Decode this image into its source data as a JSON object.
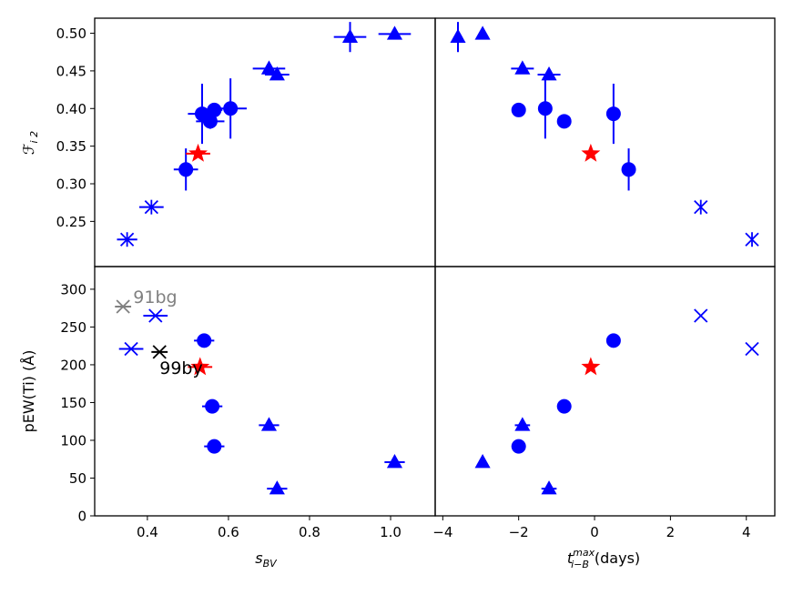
{
  "chart_data": {
    "type": "scatter",
    "colors": {
      "blue": "#0000ff",
      "red": "#ff0000",
      "gray": "#808080",
      "black": "#000000",
      "frame": "#000000"
    },
    "panels": [
      {
        "id": "top-left",
        "xlim": [
          0.27,
          1.11
        ],
        "ylim": [
          0.19,
          0.52
        ],
        "yticks": [
          0.25,
          0.3,
          0.35,
          0.4,
          0.45,
          0.5
        ],
        "ytick_labels": [
          "0.25",
          "0.30",
          "0.35",
          "0.40",
          "0.45",
          "0.50"
        ],
        "ylabel_main": "ℱ",
        "ylabel_sub": "i 2",
        "points": [
          {
            "x": 0.35,
            "y": 0.226,
            "xerr": 0.025,
            "yerr": 0,
            "marker": "asterisk",
            "color": "blue"
          },
          {
            "x": 0.41,
            "y": 0.269,
            "xerr": 0.03,
            "yerr": 0,
            "marker": "asterisk",
            "color": "blue"
          },
          {
            "x": 0.495,
            "y": 0.319,
            "xerr": 0.03,
            "yerr": 0.028,
            "marker": "circle",
            "color": "blue"
          },
          {
            "x": 0.525,
            "y": 0.34,
            "xerr": 0.03,
            "yerr": 0,
            "marker": "star",
            "color": "red"
          },
          {
            "x": 0.535,
            "y": 0.393,
            "xerr": 0.035,
            "yerr": 0.04,
            "marker": "circle",
            "color": "blue"
          },
          {
            "x": 0.555,
            "y": 0.383,
            "xerr": 0.035,
            "yerr": 0.01,
            "marker": "circle",
            "color": "blue"
          },
          {
            "x": 0.565,
            "y": 0.398,
            "xerr": 0.02,
            "yerr": 0,
            "marker": "circle",
            "color": "blue"
          },
          {
            "x": 0.605,
            "y": 0.4,
            "xerr": 0.04,
            "yerr": 0.04,
            "marker": "circle",
            "color": "blue"
          },
          {
            "x": 0.7,
            "y": 0.453,
            "xerr": 0.04,
            "yerr": 0,
            "marker": "triangle",
            "color": "blue"
          },
          {
            "x": 0.72,
            "y": 0.445,
            "xerr": 0.03,
            "yerr": 0,
            "marker": "triangle",
            "color": "blue"
          },
          {
            "x": 0.9,
            "y": 0.495,
            "xerr": 0.04,
            "yerr": 0.02,
            "marker": "triangle",
            "color": "blue"
          },
          {
            "x": 1.01,
            "y": 0.499,
            "xerr": 0.04,
            "yerr": 0,
            "marker": "triangle",
            "color": "blue"
          }
        ]
      },
      {
        "id": "top-right",
        "xlim": [
          -4.2,
          4.75
        ],
        "ylim": [
          0.19,
          0.52
        ],
        "points": [
          {
            "x": -3.6,
            "y": 0.495,
            "xerr": 0,
            "yerr": 0.02,
            "marker": "triangle",
            "color": "blue"
          },
          {
            "x": -2.95,
            "y": 0.499,
            "xerr": 0,
            "yerr": 0,
            "marker": "triangle",
            "color": "blue"
          },
          {
            "x": -1.9,
            "y": 0.453,
            "xerr": 0.3,
            "yerr": 0,
            "marker": "triangle",
            "color": "blue"
          },
          {
            "x": -1.2,
            "y": 0.445,
            "xerr": 0.3,
            "yerr": 0,
            "marker": "triangle",
            "color": "blue"
          },
          {
            "x": -2.0,
            "y": 0.398,
            "xerr": 0,
            "yerr": 0,
            "marker": "circle",
            "color": "blue"
          },
          {
            "x": -1.3,
            "y": 0.4,
            "xerr": 0,
            "yerr": 0.04,
            "marker": "circle",
            "color": "blue"
          },
          {
            "x": -0.8,
            "y": 0.383,
            "xerr": 0,
            "yerr": 0,
            "marker": "circle",
            "color": "blue"
          },
          {
            "x": 0.5,
            "y": 0.393,
            "xerr": 0,
            "yerr": 0.04,
            "marker": "circle",
            "color": "blue"
          },
          {
            "x": -0.1,
            "y": 0.34,
            "xerr": 0,
            "yerr": 0,
            "marker": "star",
            "color": "red"
          },
          {
            "x": 0.9,
            "y": 0.319,
            "xerr": 0,
            "yerr": 0.028,
            "marker": "circle",
            "color": "blue"
          },
          {
            "x": 2.8,
            "y": 0.269,
            "xerr": 0,
            "yerr": 0,
            "marker": "asterisk",
            "color": "blue"
          },
          {
            "x": 4.15,
            "y": 0.226,
            "xerr": 0,
            "yerr": 0,
            "marker": "asterisk",
            "color": "blue"
          }
        ]
      },
      {
        "id": "bottom-left",
        "xlim": [
          0.27,
          1.11
        ],
        "ylim": [
          0,
          330
        ],
        "xticks": [
          0.4,
          0.6,
          0.8,
          1.0
        ],
        "xtick_labels": [
          "0.4",
          "0.6",
          "0.8",
          "1.0"
        ],
        "yticks": [
          0,
          50,
          100,
          150,
          200,
          250,
          300
        ],
        "ytick_labels": [
          "0",
          "50",
          "100",
          "150",
          "200",
          "250",
          "300"
        ],
        "ylabel": "pEW(Ti) (Å)",
        "xlabel_main": "s",
        "xlabel_sub": "BV",
        "annotations": [
          {
            "text": "91bg",
            "x": 0.365,
            "y": 282,
            "color": "gray"
          },
          {
            "text": "99by",
            "x": 0.43,
            "y": 188,
            "color": "black"
          }
        ],
        "points": [
          {
            "x": 0.34,
            "y": 277,
            "xerr": 0.02,
            "yerr": 0,
            "marker": "x",
            "color": "gray"
          },
          {
            "x": 0.43,
            "y": 217,
            "xerr": 0.02,
            "yerr": 0,
            "marker": "x",
            "color": "black"
          },
          {
            "x": 0.42,
            "y": 265,
            "xerr": 0.03,
            "yerr": 0,
            "marker": "x",
            "color": "blue"
          },
          {
            "x": 0.36,
            "y": 221,
            "xerr": 0.03,
            "yerr": 0,
            "marker": "x",
            "color": "blue"
          },
          {
            "x": 0.54,
            "y": 232,
            "xerr": 0.025,
            "yerr": 0,
            "marker": "circle",
            "color": "blue"
          },
          {
            "x": 0.53,
            "y": 197,
            "xerr": 0.03,
            "yerr": 0,
            "marker": "star",
            "color": "red"
          },
          {
            "x": 0.56,
            "y": 145,
            "xerr": 0.025,
            "yerr": 0,
            "marker": "circle",
            "color": "blue"
          },
          {
            "x": 0.565,
            "y": 92,
            "xerr": 0.025,
            "yerr": 0,
            "marker": "circle",
            "color": "blue"
          },
          {
            "x": 0.7,
            "y": 120,
            "xerr": 0.025,
            "yerr": 0,
            "marker": "triangle",
            "color": "blue"
          },
          {
            "x": 0.72,
            "y": 36,
            "xerr": 0.025,
            "yerr": 0,
            "marker": "triangle",
            "color": "blue"
          },
          {
            "x": 1.01,
            "y": 71,
            "xerr": 0.025,
            "yerr": 0,
            "marker": "triangle",
            "color": "blue"
          }
        ]
      },
      {
        "id": "bottom-right",
        "xlim": [
          -4.2,
          4.75
        ],
        "ylim": [
          0,
          330
        ],
        "xticks": [
          -4,
          -2,
          0,
          2,
          4
        ],
        "xtick_labels": [
          "−4",
          "−2",
          "0",
          "2",
          "4"
        ],
        "xlabel_main": "t",
        "xlabel_super": "max",
        "xlabel_sub": "i−B",
        "xlabel_unit": "(days)",
        "points": [
          {
            "x": -2.95,
            "y": 71,
            "xerr": 0,
            "yerr": 0,
            "marker": "triangle",
            "color": "blue"
          },
          {
            "x": -1.9,
            "y": 120,
            "xerr": 0.2,
            "yerr": 0,
            "marker": "triangle",
            "color": "blue"
          },
          {
            "x": -1.2,
            "y": 36,
            "xerr": 0.2,
            "yerr": 0,
            "marker": "triangle",
            "color": "blue"
          },
          {
            "x": -2.0,
            "y": 92,
            "xerr": 0,
            "yerr": 0,
            "marker": "circle",
            "color": "blue"
          },
          {
            "x": -0.8,
            "y": 145,
            "xerr": 0.1,
            "yerr": 0,
            "marker": "circle",
            "color": "blue"
          },
          {
            "x": 0.5,
            "y": 232,
            "xerr": 0.1,
            "yerr": 0,
            "marker": "circle",
            "color": "blue"
          },
          {
            "x": -0.1,
            "y": 197,
            "xerr": 0,
            "yerr": 0,
            "marker": "star",
            "color": "red"
          },
          {
            "x": 2.8,
            "y": 265,
            "xerr": 0,
            "yerr": 0,
            "marker": "x",
            "color": "blue"
          },
          {
            "x": 4.15,
            "y": 221,
            "xerr": 0,
            "yerr": 0,
            "marker": "x",
            "color": "blue"
          }
        ]
      }
    ]
  }
}
